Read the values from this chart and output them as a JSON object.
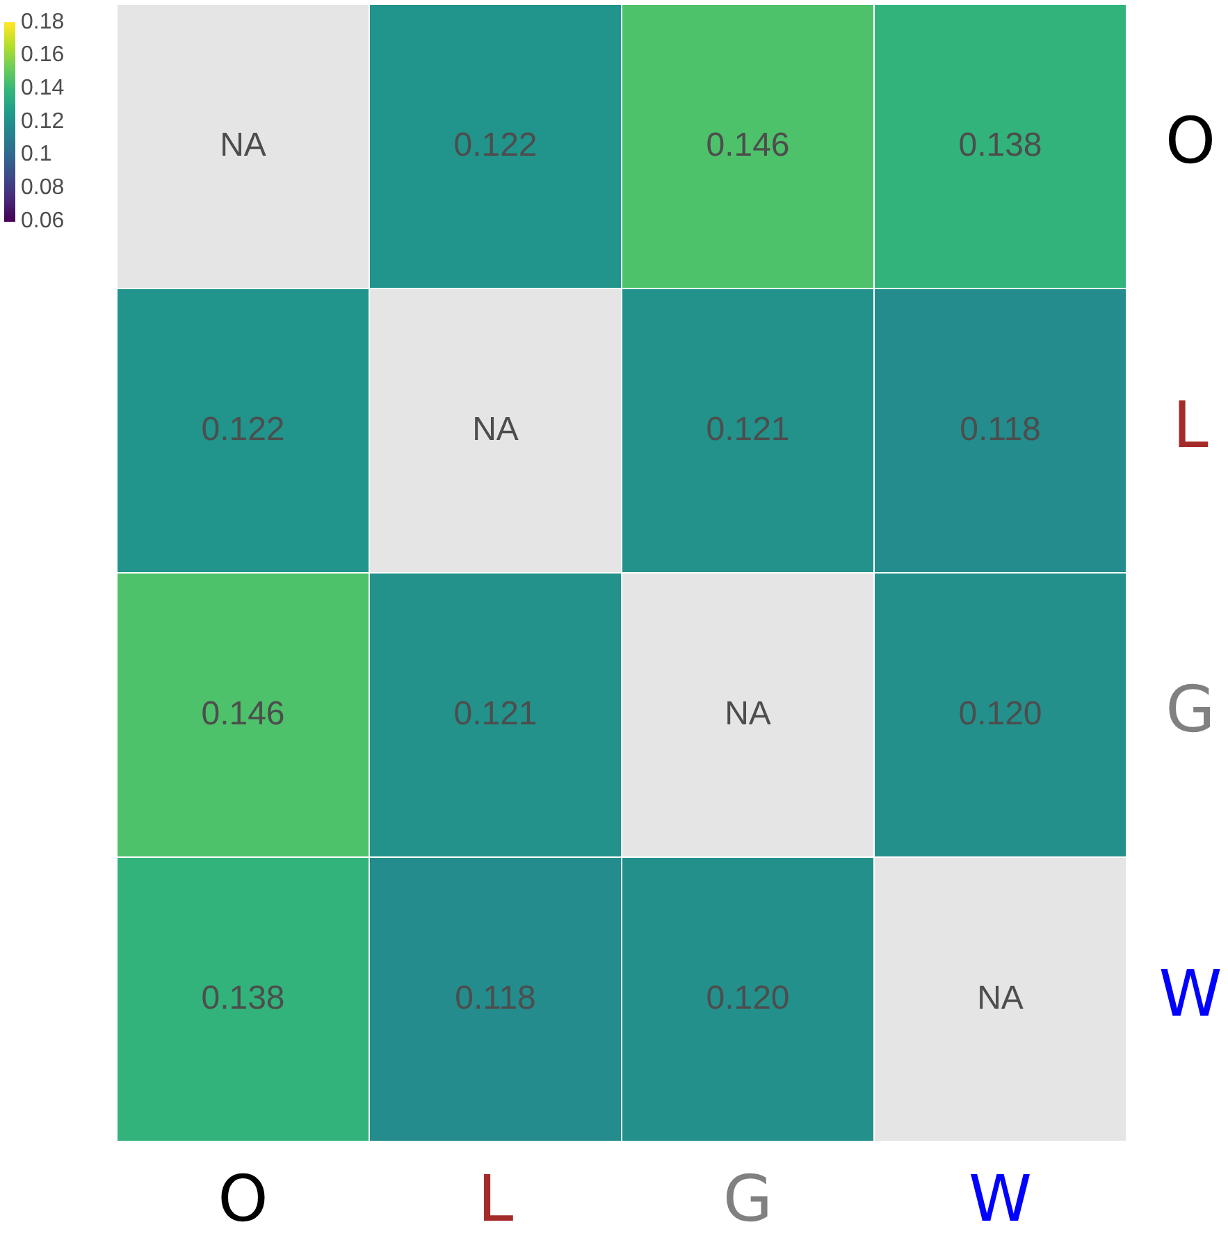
{
  "chart_data": {
    "type": "heatmap",
    "categories": [
      "O",
      "L",
      "G",
      "W"
    ],
    "y_categories": [
      "O",
      "L",
      "G",
      "W"
    ],
    "cells": [
      [
        null,
        0.122,
        0.146,
        0.138
      ],
      [
        0.122,
        null,
        0.121,
        0.118
      ],
      [
        0.146,
        0.121,
        null,
        0.12
      ],
      [
        0.138,
        0.118,
        0.12,
        null
      ]
    ],
    "cell_labels": [
      [
        "NA",
        "0.122",
        "0.146",
        "0.138"
      ],
      [
        "0.122",
        "NA",
        "0.121",
        "0.118"
      ],
      [
        "0.146",
        "0.121",
        "NA",
        "0.120"
      ],
      [
        "0.138",
        "0.118",
        "0.120",
        "NA"
      ]
    ],
    "data_labels": true,
    "clim": [
      0.06,
      0.18
    ],
    "cticks": [
      0.06,
      0.08,
      0.1,
      0.12,
      0.14,
      0.16,
      0.18
    ]
  }
}
